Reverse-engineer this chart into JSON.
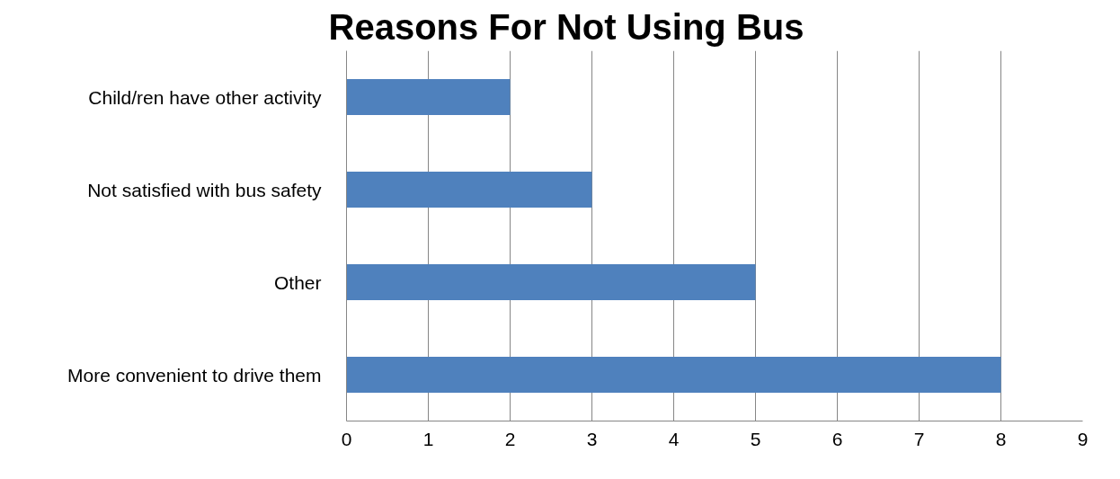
{
  "chart_data": {
    "type": "bar",
    "orientation": "horizontal",
    "title": "Reasons For Not Using Bus",
    "categories": [
      "Child/ren have other activity",
      "Not satisfied with bus safety",
      "Other",
      "More convenient to drive them"
    ],
    "values": [
      2,
      3,
      5,
      8
    ],
    "color": "#4f81bd",
    "xlim": [
      0,
      9
    ],
    "xticks": [
      0,
      1,
      2,
      3,
      4,
      5,
      6,
      7,
      8,
      9
    ],
    "grid": "x"
  }
}
